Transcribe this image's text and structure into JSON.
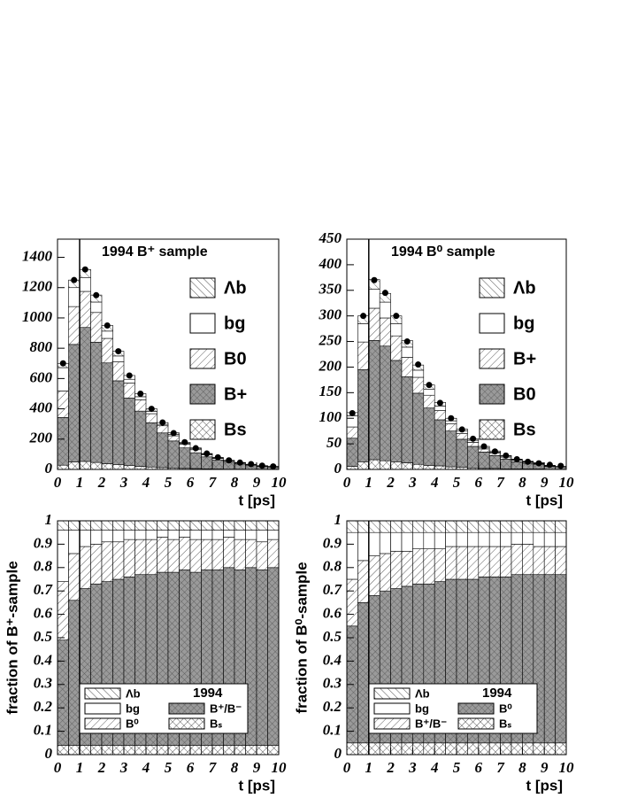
{
  "chart_data": [
    {
      "type": "histogram",
      "title": "1994 B⁺ sample",
      "x_label": "t [ps]",
      "bins": [
        0,
        0.5,
        1,
        1.5,
        2,
        2.5,
        3,
        3.5,
        4,
        4.5,
        5,
        5.5,
        6,
        6.5,
        7,
        7.5,
        8,
        8.5,
        9,
        9.5,
        10
      ],
      "xlim": [
        0,
        10
      ],
      "xticks": [
        0,
        1,
        2,
        3,
        4,
        5,
        6,
        7,
        8,
        9,
        10
      ],
      "ylim": [
        0,
        1520
      ],
      "yticks": [
        0,
        200,
        400,
        600,
        800,
        1000,
        1200,
        1400
      ],
      "marker_x": 1,
      "series": [
        {
          "name": "Bs",
          "pattern": "cross",
          "values": [
            28,
            50,
            53,
            46,
            38,
            31,
            25,
            20,
            16,
            12,
            10,
            7,
            6,
            4,
            3,
            2,
            2,
            1,
            1,
            1
          ]
        },
        {
          "name": "B+",
          "pattern": "dark",
          "values": [
            315,
            775,
            884,
            794,
            665,
            554,
            446,
            365,
            292,
            229,
            178,
            135,
            104,
            79,
            60,
            46,
            34,
            27,
            19,
            15
          ]
        },
        {
          "name": "B0",
          "pattern": "hatch",
          "values": [
            175,
            250,
            238,
            196,
            162,
            125,
            99,
            75,
            60,
            47,
            34,
            25,
            20,
            14,
            10,
            8,
            6,
            4,
            3,
            2
          ]
        },
        {
          "name": "bg",
          "pattern": "white",
          "values": [
            154,
            125,
            92,
            69,
            48,
            39,
            25,
            20,
            16,
            9,
            10,
            5,
            6,
            4,
            3,
            2,
            2,
            1,
            1,
            1
          ]
        },
        {
          "name": "Λb",
          "pattern": "rhatch",
          "values": [
            28,
            50,
            53,
            46,
            38,
            31,
            25,
            20,
            16,
            12,
            10,
            7,
            6,
            4,
            3,
            2,
            2,
            1,
            1,
            1
          ]
        }
      ],
      "points": [
        700,
        1250,
        1320,
        1150,
        950,
        780,
        620,
        500,
        400,
        310,
        240,
        180,
        140,
        105,
        80,
        60,
        45,
        35,
        25,
        20
      ]
    },
    {
      "type": "histogram",
      "title": "1994 B⁰ sample",
      "x_label": "t [ps]",
      "bins": [
        0,
        0.5,
        1,
        1.5,
        2,
        2.5,
        3,
        3.5,
        4,
        4.5,
        5,
        5.5,
        6,
        6.5,
        7,
        7.5,
        8,
        8.5,
        9,
        9.5,
        10
      ],
      "xlim": [
        0,
        10
      ],
      "xticks": [
        0,
        1,
        2,
        3,
        4,
        5,
        6,
        7,
        8,
        9,
        10
      ],
      "ylim": [
        0,
        450
      ],
      "yticks": [
        0,
        50,
        100,
        150,
        200,
        250,
        300,
        350,
        400,
        450
      ],
      "marker_x": 1,
      "series": [
        {
          "name": "Bs",
          "pattern": "cross",
          "values": [
            6,
            15,
            19,
            17,
            15,
            13,
            10,
            8,
            7,
            5,
            4,
            3,
            2,
            2,
            1,
            1,
            1,
            1,
            0,
            0
          ]
        },
        {
          "name": "B0",
          "pattern": "dark",
          "values": [
            55,
            180,
            233,
            224,
            198,
            168,
            139,
            112,
            90,
            70,
            55,
            42,
            32,
            25,
            19,
            14,
            11,
            9,
            6,
            5
          ]
        },
        {
          "name": "B+",
          "pattern": "hatch",
          "values": [
            22,
            54,
            63,
            55,
            48,
            38,
            31,
            25,
            18,
            14,
            11,
            8,
            6,
            5,
            4,
            3,
            2,
            1,
            1,
            1
          ]
        },
        {
          "name": "bg",
          "pattern": "white",
          "values": [
            22,
            36,
            37,
            31,
            24,
            20,
            14,
            12,
            9,
            6,
            5,
            4,
            3,
            2,
            2,
            1,
            1,
            1,
            1,
            0
          ]
        },
        {
          "name": "Λb",
          "pattern": "rhatch",
          "values": [
            6,
            15,
            19,
            17,
            15,
            13,
            10,
            8,
            7,
            5,
            4,
            3,
            2,
            2,
            1,
            1,
            1,
            1,
            0,
            0
          ]
        }
      ],
      "points": [
        110,
        300,
        370,
        345,
        300,
        250,
        205,
        165,
        130,
        100,
        78,
        60,
        45,
        35,
        27,
        20,
        15,
        12,
        9,
        7
      ]
    },
    {
      "type": "histogram",
      "y_label": "fraction of B⁺-sample",
      "x_label": "t [ps]",
      "legend_title": "1994",
      "bins": [
        0,
        0.5,
        1,
        1.5,
        2,
        2.5,
        3,
        3.5,
        4,
        4.5,
        5,
        5.5,
        6,
        6.5,
        7,
        7.5,
        8,
        8.5,
        9,
        9.5,
        10
      ],
      "xlim": [
        0,
        10
      ],
      "xticks": [
        0,
        1,
        2,
        3,
        4,
        5,
        6,
        7,
        8,
        9,
        10
      ],
      "ylim": [
        0,
        1
      ],
      "yticks": [
        0,
        0.1,
        0.2,
        0.3,
        0.4,
        0.5,
        0.6,
        0.7,
        0.8,
        0.9,
        1
      ],
      "marker_x": 1,
      "series": [
        {
          "name": "Bₛ",
          "pattern": "cross",
          "values": [
            0.04,
            0.04,
            0.04,
            0.04,
            0.04,
            0.04,
            0.04,
            0.04,
            0.04,
            0.04,
            0.04,
            0.04,
            0.04,
            0.04,
            0.04,
            0.04,
            0.04,
            0.04,
            0.04,
            0.04
          ]
        },
        {
          "name": "B⁺/B⁻",
          "pattern": "dark",
          "values": [
            0.45,
            0.62,
            0.67,
            0.69,
            0.7,
            0.71,
            0.72,
            0.73,
            0.73,
            0.74,
            0.74,
            0.75,
            0.74,
            0.75,
            0.75,
            0.76,
            0.75,
            0.76,
            0.75,
            0.76
          ]
        },
        {
          "name": "B⁰",
          "pattern": "hatch",
          "values": [
            0.25,
            0.2,
            0.18,
            0.17,
            0.17,
            0.16,
            0.16,
            0.15,
            0.15,
            0.15,
            0.14,
            0.14,
            0.14,
            0.13,
            0.13,
            0.13,
            0.13,
            0.12,
            0.12,
            0.12
          ]
        },
        {
          "name": "bg",
          "pattern": "white",
          "values": [
            0.22,
            0.1,
            0.07,
            0.06,
            0.05,
            0.05,
            0.04,
            0.04,
            0.04,
            0.03,
            0.04,
            0.03,
            0.04,
            0.04,
            0.04,
            0.03,
            0.04,
            0.04,
            0.05,
            0.04
          ]
        },
        {
          "name": "Λb",
          "pattern": "rhatch",
          "values": [
            0.04,
            0.04,
            0.04,
            0.04,
            0.04,
            0.04,
            0.04,
            0.04,
            0.04,
            0.04,
            0.04,
            0.04,
            0.04,
            0.04,
            0.04,
            0.04,
            0.04,
            0.04,
            0.04,
            0.04
          ]
        }
      ]
    },
    {
      "type": "histogram",
      "y_label": "fraction of B⁰-sample",
      "x_label": "t [ps]",
      "legend_title": "1994",
      "bins": [
        0,
        0.5,
        1,
        1.5,
        2,
        2.5,
        3,
        3.5,
        4,
        4.5,
        5,
        5.5,
        6,
        6.5,
        7,
        7.5,
        8,
        8.5,
        9,
        9.5,
        10
      ],
      "xlim": [
        0,
        10
      ],
      "xticks": [
        0,
        1,
        2,
        3,
        4,
        5,
        6,
        7,
        8,
        9,
        10
      ],
      "ylim": [
        0,
        1
      ],
      "yticks": [
        0,
        0.1,
        0.2,
        0.3,
        0.4,
        0.5,
        0.6,
        0.7,
        0.8,
        0.9,
        1
      ],
      "marker_x": 1,
      "series": [
        {
          "name": "Bₛ",
          "pattern": "cross",
          "values": [
            0.05,
            0.05,
            0.05,
            0.05,
            0.05,
            0.05,
            0.05,
            0.05,
            0.05,
            0.05,
            0.05,
            0.05,
            0.05,
            0.05,
            0.05,
            0.05,
            0.05,
            0.05,
            0.05,
            0.05
          ]
        },
        {
          "name": "B⁰",
          "pattern": "dark",
          "values": [
            0.5,
            0.6,
            0.63,
            0.65,
            0.66,
            0.67,
            0.68,
            0.68,
            0.69,
            0.7,
            0.7,
            0.7,
            0.71,
            0.71,
            0.71,
            0.72,
            0.72,
            0.72,
            0.72,
            0.72
          ]
        },
        {
          "name": "B⁺/B⁻",
          "pattern": "hatch",
          "values": [
            0.2,
            0.18,
            0.17,
            0.16,
            0.16,
            0.15,
            0.15,
            0.15,
            0.14,
            0.14,
            0.14,
            0.14,
            0.13,
            0.13,
            0.13,
            0.13,
            0.13,
            0.12,
            0.12,
            0.12
          ]
        },
        {
          "name": "bg",
          "pattern": "white",
          "values": [
            0.2,
            0.12,
            0.1,
            0.09,
            0.08,
            0.08,
            0.07,
            0.07,
            0.07,
            0.06,
            0.06,
            0.06,
            0.06,
            0.06,
            0.06,
            0.05,
            0.05,
            0.06,
            0.06,
            0.06
          ]
        },
        {
          "name": "Λb",
          "pattern": "rhatch",
          "values": [
            0.05,
            0.05,
            0.05,
            0.05,
            0.05,
            0.05,
            0.05,
            0.05,
            0.05,
            0.05,
            0.05,
            0.05,
            0.05,
            0.05,
            0.05,
            0.05,
            0.05,
            0.05,
            0.05,
            0.05
          ]
        }
      ]
    }
  ]
}
